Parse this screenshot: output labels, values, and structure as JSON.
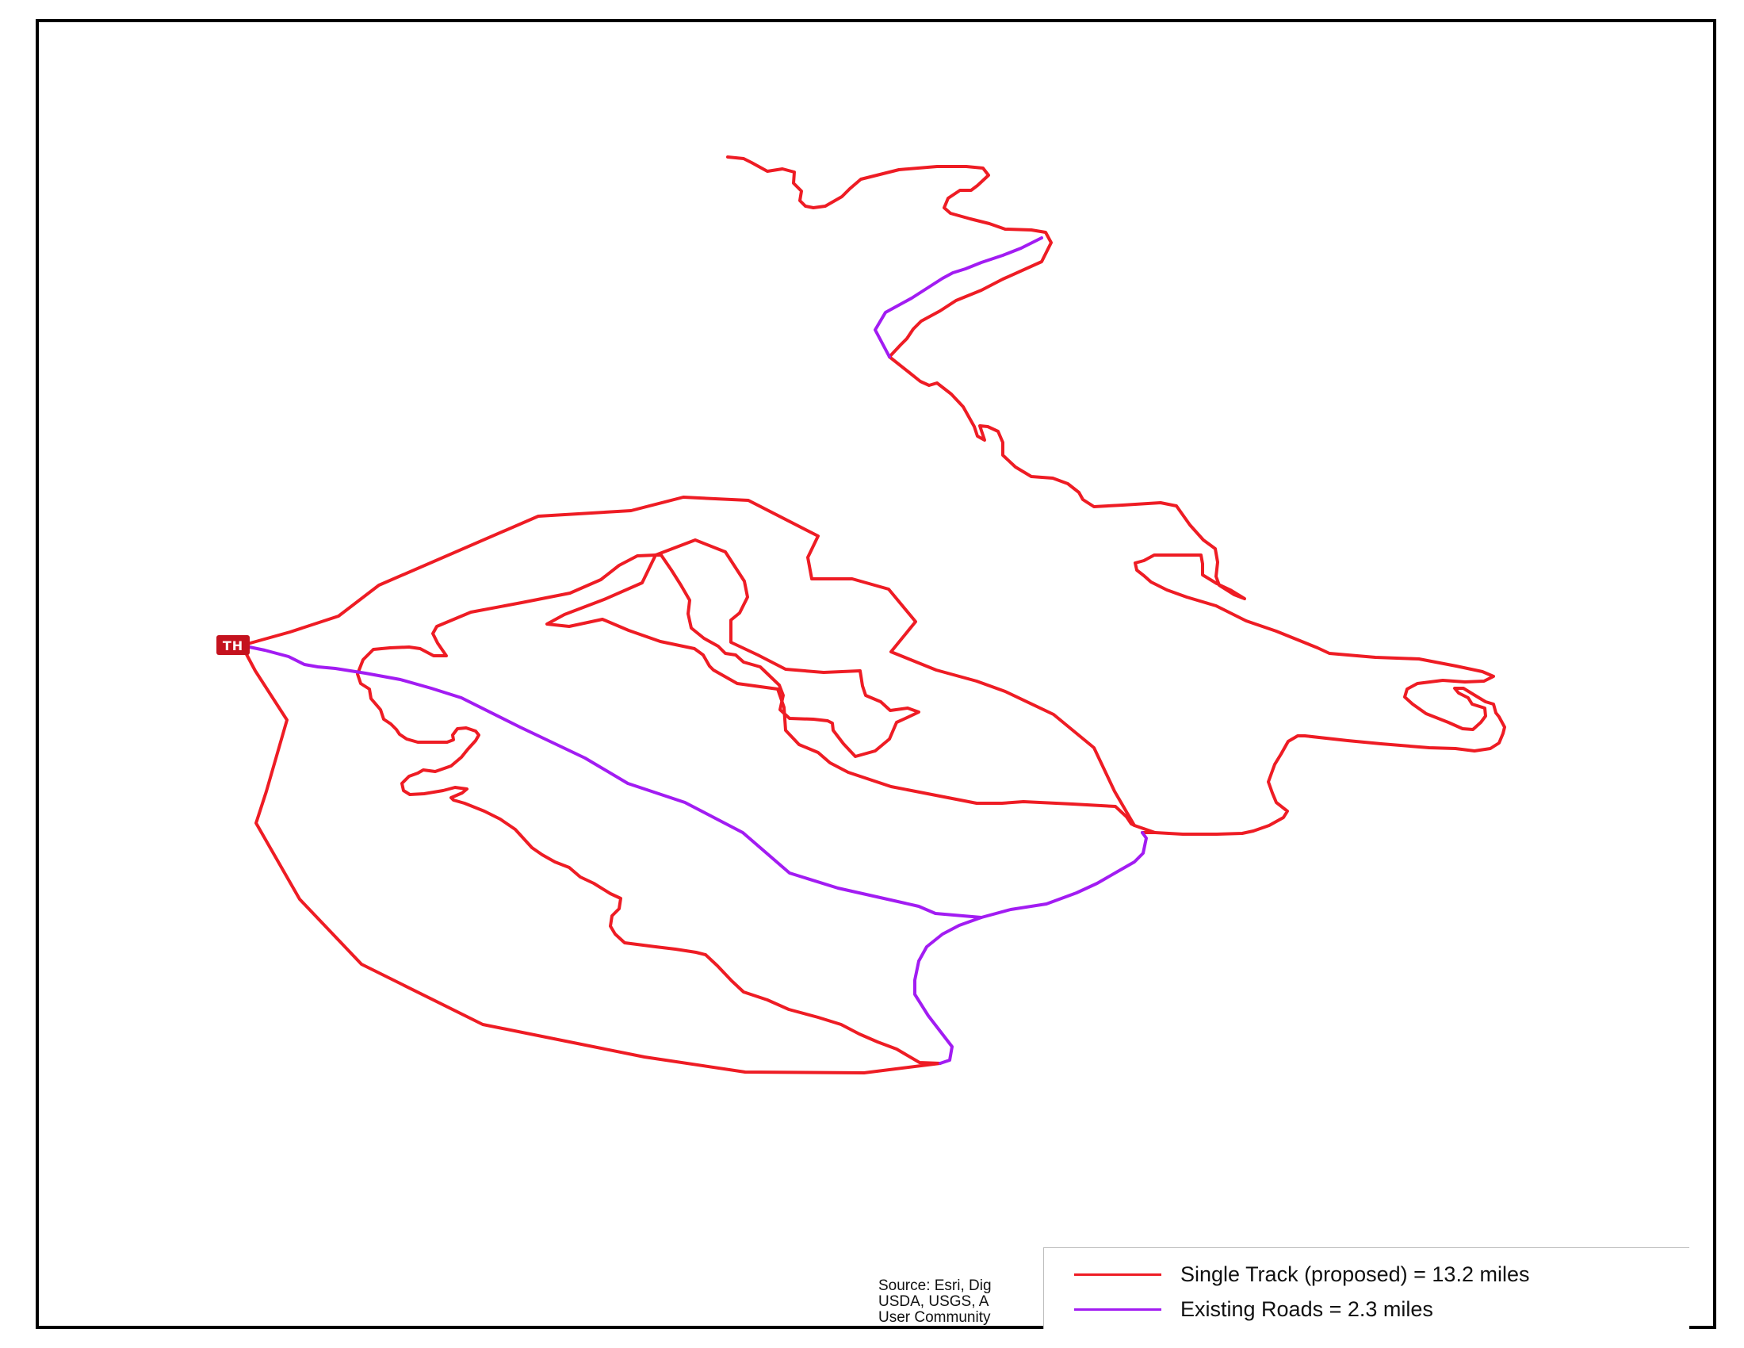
{
  "map": {
    "trailhead_label": "TH",
    "source_lines": [
      "Source: Esri, Dig",
      "USDA, USGS, A",
      "User Community"
    ],
    "legend": [
      {
        "label": "Single Track (proposed) = 13.2 miles",
        "color": "#ee1c24"
      },
      {
        "label": "Existing Roads = 2.3 miles",
        "color": "#a21cf2"
      }
    ],
    "colors": {
      "single_track": "#ee1c24",
      "existing_roads": "#a21cf2",
      "trailhead_marker": "#c4121e"
    }
  }
}
